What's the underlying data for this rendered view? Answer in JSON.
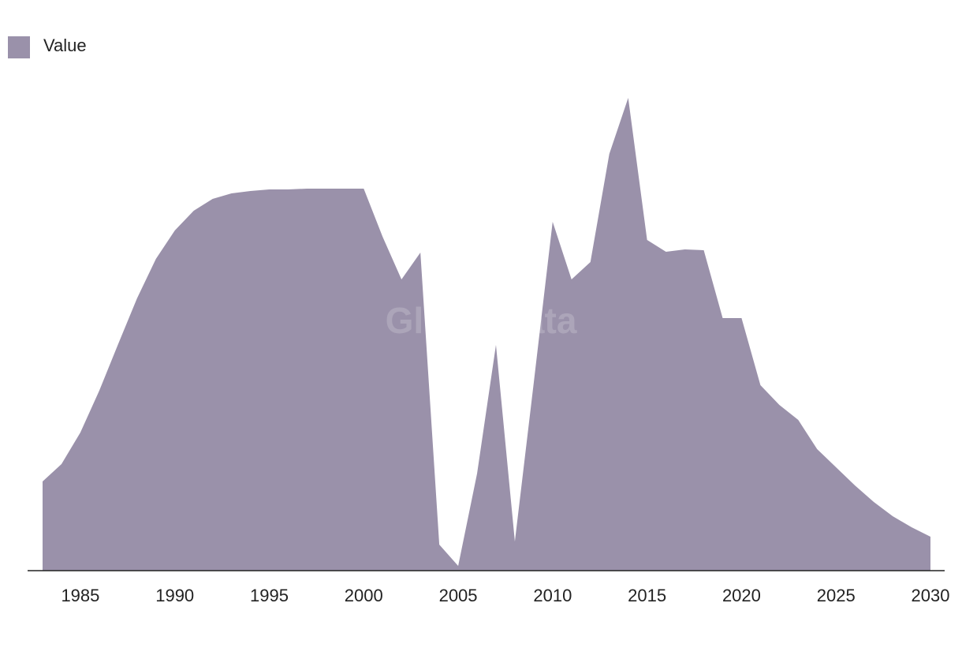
{
  "chart_data": {
    "type": "area",
    "watermark": "GlobalData",
    "x": [
      1983,
      1984,
      1985,
      1986,
      1987,
      1988,
      1989,
      1990,
      1991,
      1992,
      1993,
      1994,
      1995,
      1996,
      1997,
      1998,
      1999,
      2000,
      2001,
      2002,
      2003,
      2004,
      2005,
      2006,
      2007,
      2008,
      2009,
      2010,
      2011,
      2012,
      2013,
      2014,
      2015,
      2016,
      2017,
      2018,
      2019,
      2020,
      2021,
      2022,
      2023,
      2024,
      2025,
      2026,
      2027,
      2028,
      2029,
      2030
    ],
    "series": [
      {
        "name": "Value",
        "color": "#9a91aa",
        "values": [
          113,
          135,
          175,
          228,
          287,
          345,
          395,
          431,
          456,
          471,
          478,
          481,
          483,
          483,
          484,
          484,
          484,
          484,
          423,
          369,
          403,
          33,
          6,
          123,
          286,
          37,
          238,
          442,
          369,
          391,
          528,
          599,
          419,
          404,
          407,
          406,
          320,
          320,
          235,
          210,
          191,
          154,
          131,
          108,
          87,
          69,
          55,
          43
        ]
      }
    ],
    "xlim": [
      1983,
      2030
    ],
    "xticks": [
      1985,
      1990,
      1995,
      2000,
      2005,
      2010,
      2015,
      2020,
      2025,
      2030
    ],
    "ylim": [
      0,
      623
    ],
    "legend": "top-left",
    "grid": false
  }
}
